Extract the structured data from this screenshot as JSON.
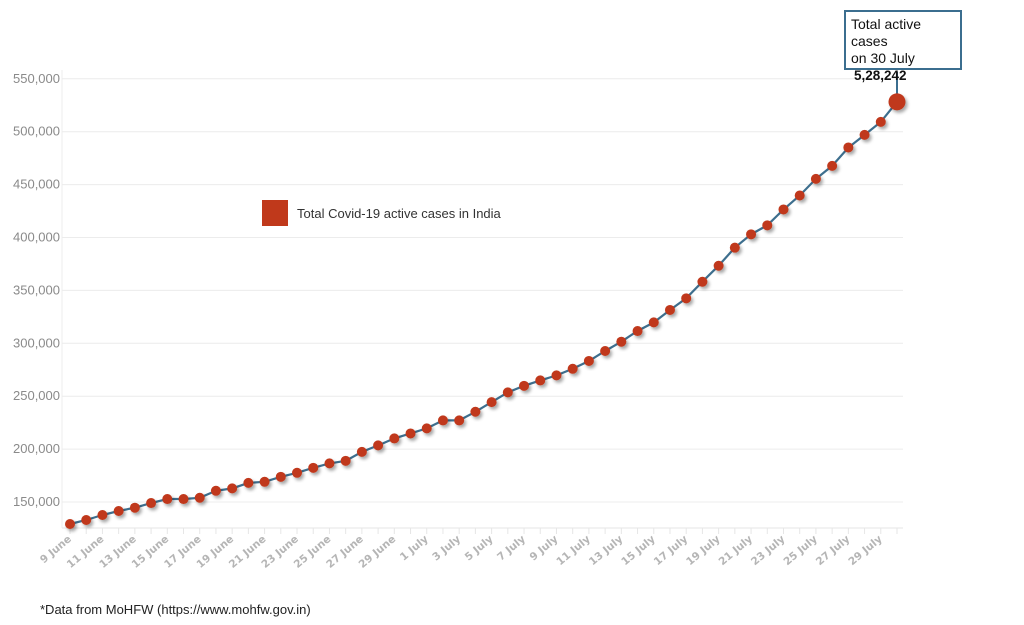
{
  "chart_data": {
    "type": "line",
    "title": "",
    "xlabel": "",
    "ylabel": "",
    "ylim": [
      125000,
      560000
    ],
    "grid": true,
    "legend_position": "inside-top-left",
    "y_ticks": [
      150000,
      200000,
      250000,
      300000,
      350000,
      400000,
      450000,
      500000,
      550000
    ],
    "y_tick_labels": [
      "150,000",
      "200,000",
      "250,000",
      "300,000",
      "350,000",
      "400,000",
      "450,000",
      "500,000",
      "550,000"
    ],
    "x_tick_labels": [
      "9 June",
      "11 June",
      "13 June",
      "15 June",
      "17 June",
      "19 June",
      "21 June",
      "23 June",
      "25 June",
      "27 June",
      "29 June",
      "1 July",
      "3 July",
      "5 July",
      "7 July",
      "9 July",
      "11 July",
      "13 July",
      "15 July",
      "17 July",
      "19 July",
      "21 July",
      "23 July",
      "25 July",
      "27 July",
      "29 July"
    ],
    "x": [
      "9 June",
      "10 June",
      "11 June",
      "12 June",
      "13 June",
      "14 June",
      "15 June",
      "16 June",
      "17 June",
      "18 June",
      "19 June",
      "20 June",
      "21 June",
      "22 June",
      "23 June",
      "24 June",
      "25 June",
      "26 June",
      "27 June",
      "28 June",
      "29 June",
      "30 June",
      "1 July",
      "2 July",
      "3 July",
      "4 July",
      "5 July",
      "6 July",
      "7 July",
      "8 July",
      "9 July",
      "10 July",
      "11 July",
      "12 July",
      "13 July",
      "14 July",
      "15 July",
      "16 July",
      "17 July",
      "18 July",
      "19 July",
      "20 July",
      "21 July",
      "22 July",
      "23 July",
      "24 July",
      "25 July",
      "26 July",
      "27 July",
      "28 July",
      "29 July",
      "30 July"
    ],
    "series": [
      {
        "name": "Total Covid-19 active cases in India",
        "color": "#c0391b",
        "line_color": "#3e6f8e",
        "values": [
          129200,
          133000,
          137700,
          141500,
          144600,
          149000,
          152800,
          152800,
          154000,
          160600,
          162900,
          168100,
          169100,
          173800,
          177600,
          182300,
          186500,
          188900,
          197400,
          203500,
          210100,
          214800,
          219600,
          227100,
          227100,
          235300,
          244400,
          253600,
          259800,
          264900,
          269700,
          275900,
          283300,
          292700,
          301500,
          311600,
          319800,
          331500,
          342500,
          358200,
          373300,
          390400,
          403000,
          411500,
          426500,
          439700,
          455400,
          467700,
          485100,
          497000,
          509300,
          528242
        ]
      }
    ],
    "annotations": [
      {
        "text": "Total active cases on 30 July 5,28,242",
        "x": "30 July",
        "value": 528242
      }
    ]
  },
  "legend": {
    "label": "Total Covid-19 active cases in India",
    "color": "#c0391b"
  },
  "callout": {
    "line1": "Total active cases",
    "line2": "on 30 July",
    "value": "5,28,242",
    "border_color": "#3b6e8f"
  },
  "source": "*Data from MoHFW (https://www.mohfw.gov.in)"
}
